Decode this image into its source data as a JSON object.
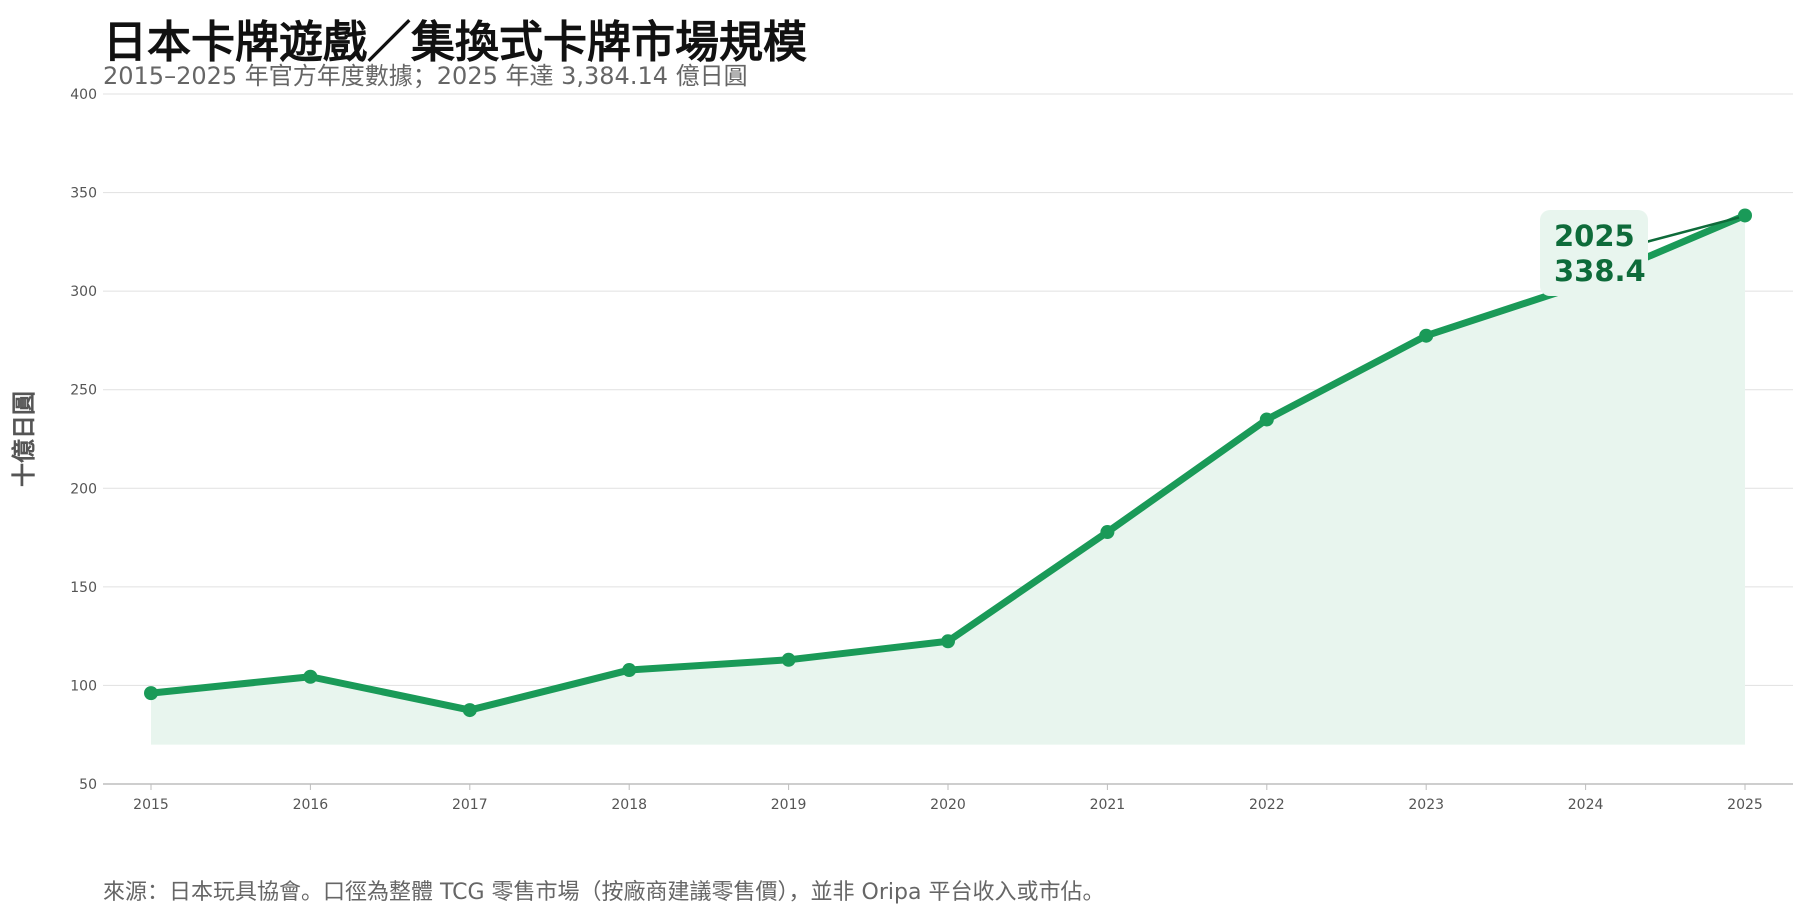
{
  "chart_data": {
    "type": "line",
    "title": "日本卡牌遊戲／集換式卡牌市場規模",
    "subtitle": "2015–2025 年官方年度數據；2025 年達 3,384.14 億日圓",
    "ylabel": "十億日圓",
    "xlabel": "",
    "x": [
      2015,
      2016,
      2017,
      2018,
      2019,
      2020,
      2021,
      2022,
      2023,
      2024,
      2025
    ],
    "values": [
      96.1,
      104.4,
      87.5,
      107.8,
      113.0,
      122.4,
      177.8,
      234.9,
      277.4,
      304.0,
      338.4
    ],
    "ylim": [
      50,
      400
    ],
    "yticks": [
      50,
      100,
      150,
      200,
      250,
      300,
      350,
      400
    ],
    "grid": true,
    "area_fill": true,
    "area_baseline": 70,
    "annotation": {
      "x": 2025,
      "year_label": "2025",
      "value_label": "338.4"
    },
    "colors": {
      "line": "#1a9a58",
      "fill": "#e8f5ee",
      "callout_bg": "#e8f5ee",
      "callout_text": "#0e6b3a"
    },
    "source_note": "來源：日本玩具協會。口徑為整體 TCG 零售市場（按廠商建議零售價），並非 Oripa 平台收入或市佔。"
  }
}
